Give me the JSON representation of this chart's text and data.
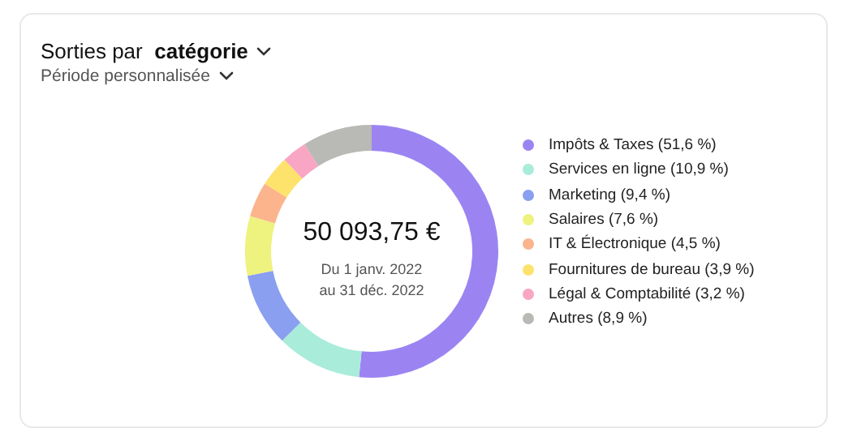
{
  "chart_data": {
    "type": "donut",
    "title": "Sorties par catégorie",
    "subtitle": "Période personnalisée",
    "categories": [
      "Impôts & Taxes",
      "Services en ligne",
      "Marketing",
      "Salaires",
      "IT & Électronique",
      "Fournitures de bureau",
      "Légal & Comptabilité",
      "Autres"
    ],
    "values": [
      51.6,
      10.9,
      9.4,
      7.6,
      4.5,
      3.9,
      3.2,
      8.9
    ],
    "value_labels": [
      "(51,6 %)",
      "(10,9 %)",
      "(9,4 %)",
      "(7,6 %)",
      "(4,5 %)",
      "(3,9 %)",
      "(3,2 %)",
      "(8,9 %)"
    ],
    "colors": [
      "#9b84f2",
      "#a9ecd9",
      "#8a9ff0",
      "#eef27e",
      "#fbb48c",
      "#fde36c",
      "#f9a5c4",
      "#b9b9b5"
    ],
    "annotations": [
      "50 093,75 €",
      "Du 1 janv. 2022",
      "au 31 déc. 2022"
    ],
    "legend": "right"
  }
}
